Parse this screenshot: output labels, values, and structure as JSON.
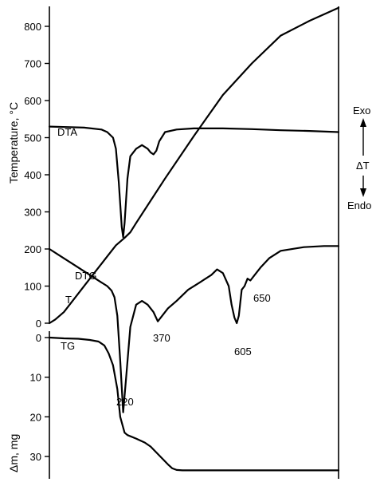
{
  "chart_data": {
    "type": "line",
    "title": "",
    "temperature_axis": {
      "title": "Temperature, °C",
      "ticks": [
        0,
        100,
        200,
        300,
        400,
        500,
        600,
        700,
        800
      ],
      "range": [
        0,
        850
      ]
    },
    "mass_axis": {
      "title": "Δm, mg",
      "ticks": [
        0,
        10,
        20,
        30
      ],
      "range": [
        0,
        34
      ]
    },
    "dta_scale": {
      "exo_label": "Exo",
      "delta_label": "ΔT",
      "endo_label": "Endo"
    },
    "x_range": [
      0,
      100
    ],
    "series": [
      {
        "name": "DTA",
        "x": [
          0,
          12,
          18,
          20,
          22,
          23,
          24,
          25,
          25.5,
          26,
          27,
          28,
          30,
          32,
          34,
          35,
          36,
          37,
          38,
          40,
          44,
          50,
          60,
          70,
          80,
          90,
          100
        ],
        "y": [
          530,
          527,
          522,
          515,
          500,
          470,
          380,
          260,
          232,
          270,
          390,
          450,
          470,
          480,
          470,
          460,
          455,
          465,
          490,
          515,
          522,
          525,
          525,
          523,
          520,
          518,
          515
        ]
      },
      {
        "name": "T",
        "x": [
          0,
          2,
          5,
          10,
          15,
          20,
          23,
          26,
          28,
          30,
          40,
          50,
          60,
          70,
          80,
          90,
          100
        ],
        "y": [
          0,
          10,
          30,
          80,
          130,
          180,
          210,
          230,
          245,
          270,
          390,
          505,
          615,
          700,
          775,
          815,
          850
        ]
      },
      {
        "name": "DTG",
        "x": [
          0,
          4,
          8,
          12,
          15,
          18,
          20,
          21.5,
          22.5,
          23.5,
          24.5,
          25.5,
          26.5,
          28,
          30,
          32,
          34,
          36,
          37.5,
          39,
          41,
          44,
          48,
          52,
          56,
          58,
          60,
          62,
          63,
          64,
          64.8,
          65.5,
          66.5,
          67.5,
          68.5,
          69.5,
          71,
          73,
          76,
          80,
          88,
          95,
          100
        ],
        "y": [
          200,
          180,
          160,
          140,
          125,
          110,
          100,
          88,
          70,
          20,
          -100,
          -240,
          -150,
          -10,
          50,
          60,
          50,
          30,
          5,
          20,
          40,
          60,
          90,
          110,
          130,
          145,
          135,
          100,
          50,
          15,
          0,
          20,
          90,
          100,
          120,
          115,
          130,
          150,
          175,
          195,
          205,
          208,
          208
        ]
      },
      {
        "name": "TG",
        "x": [
          0,
          5,
          10,
          14,
          17,
          19,
          20.5,
          22,
          23.5,
          24.5,
          26,
          27,
          30,
          33,
          35,
          37,
          39,
          41,
          42.5,
          44,
          46,
          50,
          60,
          70,
          80,
          90,
          100
        ],
        "y": [
          0,
          -0.2,
          -0.3,
          -0.6,
          -1,
          -2,
          -4,
          -7,
          -13,
          -20,
          -24,
          -24.6,
          -25.5,
          -26.5,
          -27.5,
          -29,
          -30.5,
          -32,
          -33,
          -33.4,
          -33.5,
          -33.5,
          -33.5,
          -33.5,
          -33.5,
          -33.5,
          -33.5
        ]
      }
    ],
    "peak_labels": [
      "220",
      "370",
      "605",
      "650"
    ]
  }
}
